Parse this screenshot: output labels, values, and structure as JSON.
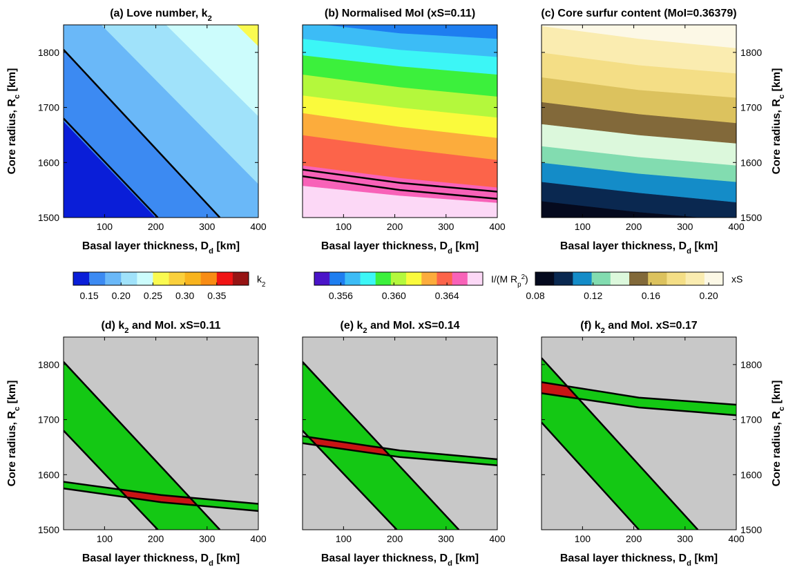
{
  "chart_data": [
    {
      "id": "a",
      "type": "heatmap",
      "title": "(a) Love number, k",
      "title_sub": "2",
      "xlabel": "Basal layer thickness, D",
      "xlabel_sub": "d",
      "xlabel_unit": " [km]",
      "ylabel": "Core radius, R",
      "ylabel_sub": "c",
      "ylabel_unit": " [km]",
      "xlim": [
        20,
        400
      ],
      "ylim": [
        1500,
        1850
      ],
      "xticks": [
        "100",
        "200",
        "300",
        "400"
      ],
      "yticks": [
        "1500",
        "1600",
        "1700",
        "1800"
      ],
      "bands": [
        {
          "color": "#0a1ed8",
          "upper": [
            [
              20,
              1675
            ],
            [
              200,
              1500
            ]
          ]
        },
        {
          "color": "#3c8af2",
          "upper": [
            [
              20,
              1805
            ],
            [
              325,
              1500
            ]
          ]
        },
        {
          "color": "#6ab8f8",
          "upper": [
            [
              20,
              1920
            ],
            [
              465,
              1500
            ]
          ]
        },
        {
          "color": "#a0e2fa",
          "upper": [
            [
              20,
              2035
            ],
            [
              600,
              1500
            ]
          ]
        },
        {
          "color": "#ccfcfc",
          "upper": [
            [
              20,
              2160
            ],
            [
              740,
              1500
            ]
          ]
        },
        {
          "color": "#fafa50",
          "upper": [
            [
              20,
              2290
            ],
            [
              880,
              1500
            ]
          ]
        },
        {
          "color": "#fad03c",
          "upper": [
            [
              20,
              2420
            ],
            [
              1020,
              1500
            ]
          ]
        },
        {
          "color": "#f8b41e",
          "upper": [
            [
              20,
              2550
            ],
            [
              1160,
              1500
            ]
          ]
        }
      ],
      "contours": [
        {
          "pts": [
            [
              20,
              1680
            ],
            [
              204,
              1500
            ]
          ],
          "width": 2.5
        },
        {
          "pts": [
            [
              20,
              1805
            ],
            [
              325,
              1500
            ]
          ],
          "width": 2.5
        }
      ]
    },
    {
      "id": "b",
      "type": "heatmap",
      "title": "(b) Normalised MoI (xS=0.11)",
      "xlabel": "Basal layer thickness, D",
      "xlabel_sub": "d",
      "xlabel_unit": " [km]",
      "xlim": [
        20,
        400
      ],
      "ylim": [
        1500,
        1850
      ],
      "xticks": [
        "100",
        "200",
        "300",
        "400"
      ],
      "bands": [
        {
          "color": "#fcd8f6",
          "upper": [
            [
              20,
              1558
            ],
            [
              210,
              1540
            ],
            [
              400,
              1527
            ]
          ]
        },
        {
          "color": "#f862b8",
          "upper": [
            [
              20,
              1595
            ],
            [
              210,
              1572
            ],
            [
              400,
              1555
            ]
          ]
        },
        {
          "color": "#fc644a",
          "upper": [
            [
              20,
              1650
            ],
            [
              210,
              1626
            ],
            [
              400,
              1605
            ]
          ]
        },
        {
          "color": "#fcac3c",
          "upper": [
            [
              20,
              1690
            ],
            [
              210,
              1665
            ],
            [
              400,
              1645
            ]
          ]
        },
        {
          "color": "#fafa3c",
          "upper": [
            [
              20,
              1722
            ],
            [
              210,
              1700
            ],
            [
              400,
              1682
            ]
          ]
        },
        {
          "color": "#b4f83c",
          "upper": [
            [
              20,
              1760
            ],
            [
              210,
              1737
            ],
            [
              400,
              1720
            ]
          ]
        },
        {
          "color": "#3cf03c",
          "upper": [
            [
              20,
              1795
            ],
            [
              210,
              1775
            ],
            [
              400,
              1760
            ]
          ]
        },
        {
          "color": "#3cf6f6",
          "upper": [
            [
              20,
              1825
            ],
            [
              210,
              1805
            ],
            [
              400,
              1792
            ]
          ]
        },
        {
          "color": "#3cbcf6",
          "upper": [
            [
              20,
              1855
            ],
            [
              210,
              1835
            ],
            [
              400,
              1825
            ]
          ]
        },
        {
          "color": "#1e7ef0",
          "upper": [
            [
              20,
              1895
            ],
            [
              210,
              1872
            ],
            [
              400,
              1858
            ]
          ]
        },
        {
          "color": "#4a14c8",
          "upper": [
            [
              20,
              2100
            ],
            [
              400,
              2100
            ]
          ]
        }
      ],
      "contours": [
        {
          "pts": [
            [
              20,
              1587
            ],
            [
              210,
              1563
            ],
            [
              400,
              1547
            ]
          ],
          "width": 2.5
        },
        {
          "pts": [
            [
              20,
              1575
            ],
            [
              210,
              1550
            ],
            [
              400,
              1534
            ]
          ],
          "width": 2.5
        }
      ]
    },
    {
      "id": "c",
      "type": "heatmap",
      "title": "(c) Core surfur content (MoI=0.36379)",
      "xlabel": "Basal layer thickness, D",
      "xlabel_sub": "d",
      "xlabel_unit": " [km]",
      "ylabel": "Core radius, R",
      "ylabel_sub": "c",
      "ylabel_unit": " [km]",
      "yaxis_side": "right",
      "xlim": [
        20,
        400
      ],
      "ylim": [
        1500,
        1850
      ],
      "xticks": [
        "100",
        "200",
        "300",
        "400"
      ],
      "yticks": [
        "1500",
        "1600",
        "1700",
        "1800"
      ],
      "bands": [
        {
          "color": "#050a1e",
          "upper": [
            [
              20,
              1530
            ],
            [
              210,
              1510
            ],
            [
              400,
              1495
            ]
          ]
        },
        {
          "color": "#0a2850",
          "upper": [
            [
              20,
              1565
            ],
            [
              210,
              1545
            ],
            [
              400,
              1528
            ]
          ]
        },
        {
          "color": "#148cc8",
          "upper": [
            [
              20,
              1600
            ],
            [
              210,
              1580
            ],
            [
              400,
              1565
            ]
          ]
        },
        {
          "color": "#82dcb0",
          "upper": [
            [
              20,
              1630
            ],
            [
              210,
              1610
            ],
            [
              400,
              1595
            ]
          ]
        },
        {
          "color": "#dcf8dc",
          "upper": [
            [
              20,
              1670
            ],
            [
              210,
              1650
            ],
            [
              400,
              1635
            ]
          ]
        },
        {
          "color": "#82693a",
          "upper": [
            [
              20,
              1710
            ],
            [
              210,
              1688
            ],
            [
              400,
              1672
            ]
          ]
        },
        {
          "color": "#dcc25e",
          "upper": [
            [
              20,
              1755
            ],
            [
              210,
              1732
            ],
            [
              400,
              1718
            ]
          ]
        },
        {
          "color": "#f4de86",
          "upper": [
            [
              20,
              1800
            ],
            [
              210,
              1777
            ],
            [
              400,
              1762
            ]
          ]
        },
        {
          "color": "#faecb0",
          "upper": [
            [
              20,
              1848
            ],
            [
              210,
              1825
            ],
            [
              400,
              1808
            ]
          ]
        },
        {
          "color": "#fcf8e6",
          "upper": [
            [
              20,
              2100
            ],
            [
              400,
              2100
            ]
          ]
        }
      ],
      "contours": []
    },
    {
      "id": "d",
      "type": "heatmap",
      "title": "(d) k",
      "title_sub": "2",
      "title_rest": " and MoI. xS=0.11",
      "xlabel": "Basal layer thickness, D",
      "xlabel_sub": "d",
      "xlabel_unit": " [km]",
      "ylabel": "Core radius, R",
      "ylabel_sub": "c",
      "ylabel_unit": " [km]",
      "xlim": [
        20,
        400
      ],
      "ylim": [
        1500,
        1850
      ],
      "xticks": [
        "100",
        "200",
        "300",
        "400"
      ],
      "yticks": [
        "1500",
        "1600",
        "1700",
        "1800"
      ],
      "background": "#c8c8c8",
      "diag": {
        "lower": [
          [
            20,
            1680
          ],
          [
            204,
            1500
          ]
        ],
        "upper": [
          [
            20,
            1805
          ],
          [
            325,
            1500
          ]
        ]
      },
      "curve": {
        "lower": [
          [
            20,
            1575
          ],
          [
            210,
            1550
          ],
          [
            400,
            1534
          ]
        ],
        "upper": [
          [
            20,
            1587
          ],
          [
            210,
            1563
          ],
          [
            400,
            1547
          ]
        ]
      }
    },
    {
      "id": "e",
      "type": "heatmap",
      "title": "(e) k",
      "title_sub": "2",
      "title_rest": " and MoI.  xS=0.14",
      "xlabel": "Basal layer thickness, D",
      "xlabel_sub": "d",
      "xlabel_unit": " [km]",
      "xlim": [
        20,
        400
      ],
      "ylim": [
        1500,
        1850
      ],
      "xticks": [
        "100",
        "200",
        "300",
        "400"
      ],
      "background": "#c8c8c8",
      "diag": {
        "lower": [
          [
            20,
            1680
          ],
          [
            204,
            1500
          ]
        ],
        "upper": [
          [
            20,
            1805
          ],
          [
            325,
            1500
          ]
        ]
      },
      "curve": {
        "lower": [
          [
            20,
            1657
          ],
          [
            210,
            1632
          ],
          [
            400,
            1617
          ]
        ],
        "upper": [
          [
            20,
            1670
          ],
          [
            210,
            1644
          ],
          [
            400,
            1628
          ]
        ]
      }
    },
    {
      "id": "f",
      "type": "heatmap",
      "title": "(f) k",
      "title_sub": "2",
      "title_rest": " and MoI.  xS=0.17",
      "xlabel": "Basal layer thickness, D",
      "xlabel_sub": "d",
      "xlabel_unit": " [km]",
      "ylabel": "Core radius, R",
      "ylabel_sub": "c",
      "ylabel_unit": " [km]",
      "yaxis_side": "right",
      "xlim": [
        20,
        400
      ],
      "ylim": [
        1500,
        1850
      ],
      "xticks": [
        "100",
        "200",
        "300",
        "400"
      ],
      "yticks": [
        "1500",
        "1600",
        "1700",
        "1800"
      ],
      "background": "#c8c8c8",
      "diag": {
        "lower": [
          [
            20,
            1695
          ],
          [
            210,
            1500
          ]
        ],
        "upper": [
          [
            20,
            1812
          ],
          [
            325,
            1500
          ]
        ]
      },
      "curve": {
        "lower": [
          [
            20,
            1748
          ],
          [
            210,
            1722
          ],
          [
            400,
            1708
          ]
        ],
        "upper": [
          [
            20,
            1768
          ],
          [
            210,
            1740
          ],
          [
            400,
            1727
          ]
        ]
      }
    }
  ],
  "colorbars": [
    {
      "id": "k2",
      "label": "k",
      "label_sub": "2",
      "colors": [
        "#0a1ed8",
        "#3c8af2",
        "#6ab8f8",
        "#a0e2fa",
        "#ccfcfc",
        "#fafa50",
        "#fad03c",
        "#f8b41e",
        "#f88c14",
        "#f01414",
        "#961414"
      ],
      "range": [
        0.125,
        0.4
      ],
      "ticks": [
        {
          "v": 0.15,
          "label": "0.15"
        },
        {
          "v": 0.2,
          "label": "0.20"
        },
        {
          "v": 0.25,
          "label": "0.25"
        },
        {
          "v": 0.3,
          "label": "0.30"
        },
        {
          "v": 0.35,
          "label": "0.35"
        }
      ]
    },
    {
      "id": "moi",
      "label": "I/(M R",
      "label_sub": "p",
      "label_sup": "2",
      "label_end": ")",
      "colors": [
        "#4a14c8",
        "#1e7ef0",
        "#3cbcf6",
        "#3cf6f6",
        "#3cf03c",
        "#b4f83c",
        "#fafa3c",
        "#fcac3c",
        "#fc644a",
        "#f862b8",
        "#fcd8f6"
      ],
      "range": [
        0.354,
        0.3667
      ],
      "ticks": [
        {
          "v": 0.356,
          "label": "0.356"
        },
        {
          "v": 0.36,
          "label": "0.360"
        },
        {
          "v": 0.364,
          "label": "0.364"
        }
      ]
    },
    {
      "id": "xs",
      "label": "xS",
      "colors": [
        "#050a1e",
        "#0a2850",
        "#148cc8",
        "#82dcb0",
        "#dcf8dc",
        "#82693a",
        "#dcc25e",
        "#f4de86",
        "#faecb0",
        "#fcf8e6"
      ],
      "range": [
        0.08,
        0.21
      ],
      "ticks": [
        {
          "v": 0.08,
          "label": "0.08"
        },
        {
          "v": 0.12,
          "label": "0.12"
        },
        {
          "v": 0.16,
          "label": "0.16"
        },
        {
          "v": 0.2,
          "label": "0.20"
        }
      ]
    }
  ],
  "colors": {
    "overlap_green": "#14c814",
    "intersection_red": "#c81414",
    "background_gray": "#c8c8c8"
  }
}
